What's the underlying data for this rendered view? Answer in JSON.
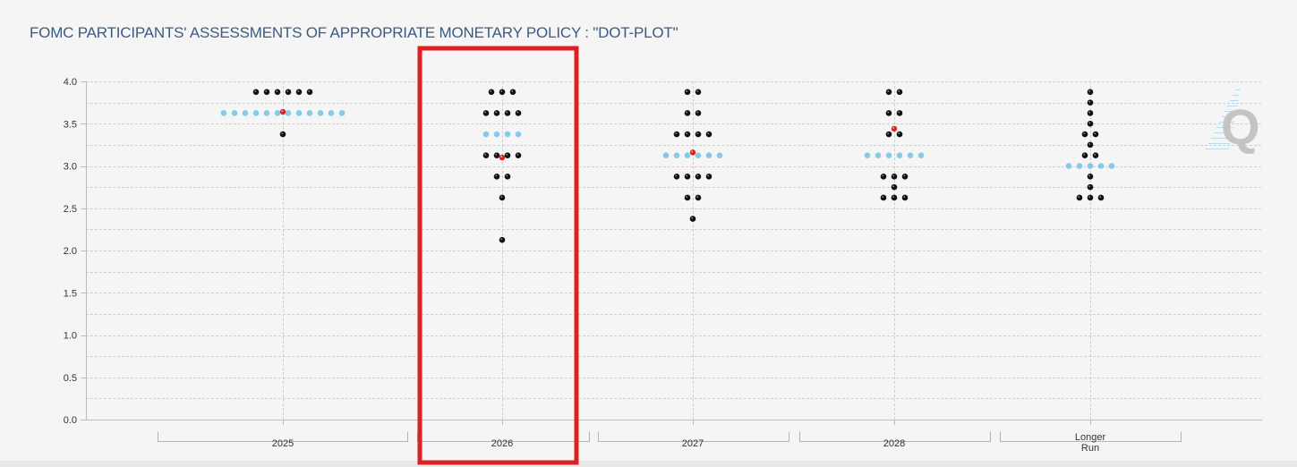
{
  "title": "FOMC PARTICIPANTS' ASSESSMENTS OF APPROPRIATE MONETARY POLICY : \"DOT-PLOT\"",
  "colors": {
    "dot": "#111111",
    "median": "#87c9e8",
    "marker": "#e02020",
    "highlight": "#e02020",
    "grid": "#cfcfcf",
    "watermark": "#c4c4c4"
  },
  "highlight_category": "2026",
  "watermark": "Q",
  "chart_data": {
    "type": "scatter",
    "ylim": [
      0,
      4
    ],
    "y_ticks": [
      "0.0",
      "0.5",
      "1.0",
      "1.5",
      "2.0",
      "2.5",
      "3.0",
      "3.5",
      "4.0"
    ],
    "grid": true,
    "categories": [
      {
        "label": "2025",
        "dots": [
          {
            "y": 3.875,
            "n": 6
          },
          {
            "y": 3.375,
            "n": 1
          }
        ],
        "median_row": {
          "y": 3.625,
          "n": 12
        },
        "marker_y": 3.64
      },
      {
        "label": "2026",
        "dots": [
          {
            "y": 3.875,
            "n": 3
          },
          {
            "y": 3.625,
            "n": 4
          },
          {
            "y": 3.125,
            "n": 4
          },
          {
            "y": 2.875,
            "n": 2
          },
          {
            "y": 2.625,
            "n": 1
          },
          {
            "y": 2.125,
            "n": 1
          }
        ],
        "median_row": {
          "y": 3.375,
          "n": 4
        },
        "marker_y": 3.1
      },
      {
        "label": "2027",
        "dots": [
          {
            "y": 3.875,
            "n": 2
          },
          {
            "y": 3.625,
            "n": 2
          },
          {
            "y": 3.375,
            "n": 4
          },
          {
            "y": 2.875,
            "n": 4
          },
          {
            "y": 2.625,
            "n": 2
          },
          {
            "y": 2.375,
            "n": 1
          }
        ],
        "median_row": {
          "y": 3.125,
          "n": 6
        },
        "marker_y": 3.16
      },
      {
        "label": "2028",
        "dots": [
          {
            "y": 3.875,
            "n": 2
          },
          {
            "y": 3.625,
            "n": 2
          },
          {
            "y": 3.375,
            "n": 2
          },
          {
            "y": 2.875,
            "n": 3
          },
          {
            "y": 2.75,
            "n": 1
          },
          {
            "y": 2.625,
            "n": 3
          }
        ],
        "median_row": {
          "y": 3.125,
          "n": 6
        },
        "marker_y": 3.44
      },
      {
        "label": "Longer\nRun",
        "dots": [
          {
            "y": 3.875,
            "n": 1
          },
          {
            "y": 3.75,
            "n": 1
          },
          {
            "y": 3.625,
            "n": 1
          },
          {
            "y": 3.5,
            "n": 1
          },
          {
            "y": 3.375,
            "n": 2
          },
          {
            "y": 3.25,
            "n": 1
          },
          {
            "y": 3.125,
            "n": 2
          },
          {
            "y": 2.875,
            "n": 1
          },
          {
            "y": 2.75,
            "n": 1
          },
          {
            "y": 2.625,
            "n": 3
          }
        ],
        "median_row": {
          "y": 3.0,
          "n": 5
        },
        "marker_y": null
      }
    ]
  }
}
